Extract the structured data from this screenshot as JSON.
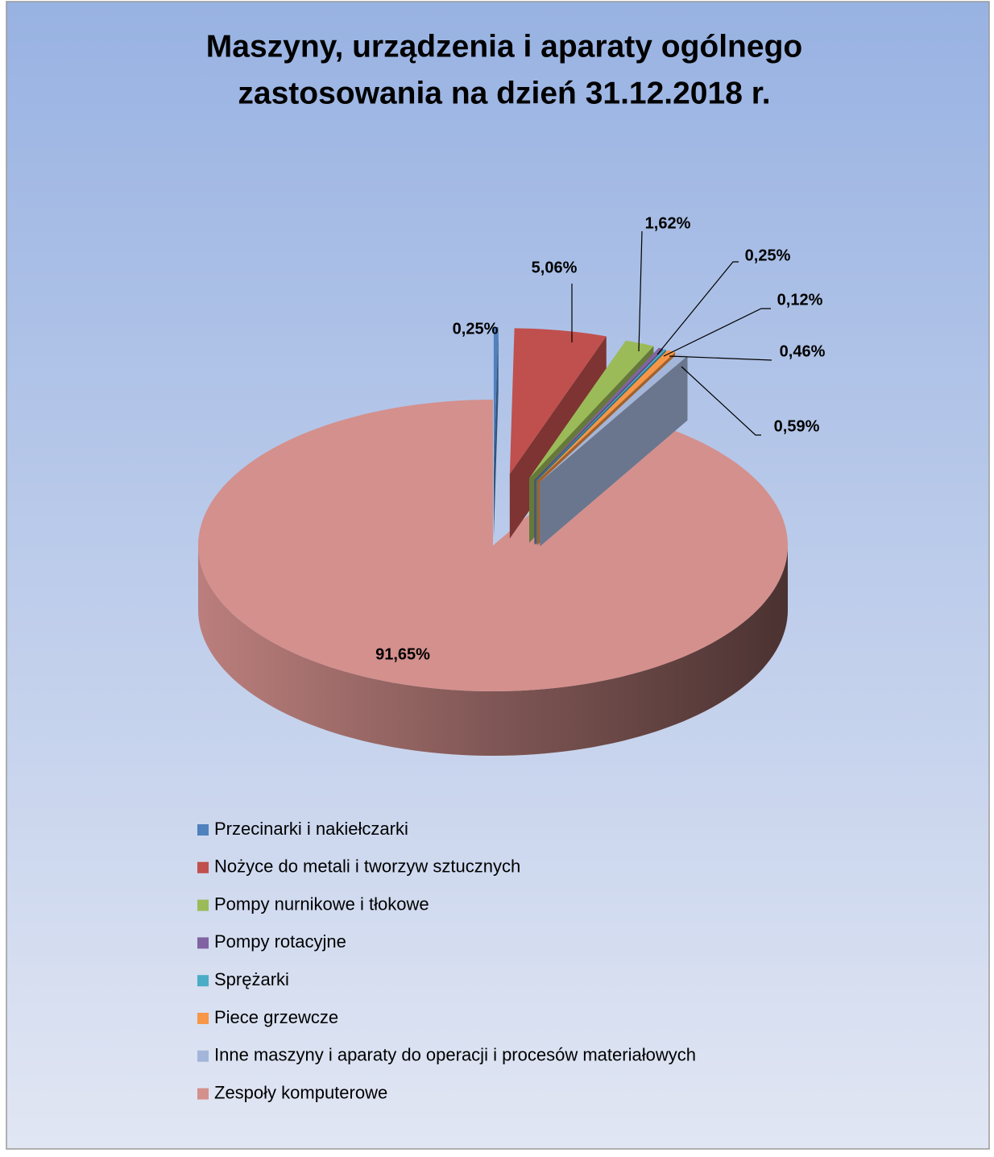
{
  "chart_data": {
    "type": "pie3d",
    "title": [
      "Maszyny, urządzenia i aparaty ogólnego",
      "zastosowania na dzień 31.12.2018 r."
    ],
    "categories": [
      "Przecinarki i nakiełczarki",
      "Nożyce do metali i tworzyw sztucznych",
      "Pompy nurnikowe i tłokowe",
      "Pompy rotacyjne",
      "Sprężarki",
      "Piece grzewcze",
      "Inne maszyny i aparaty do operacji i procesów materiałowych",
      "Zespoły komputerowe"
    ],
    "values": [
      0.25,
      5.06,
      1.62,
      0.25,
      0.12,
      0.46,
      0.59,
      91.65
    ],
    "value_labels": [
      "0,25%",
      "5,06%",
      "1,62%",
      "0,25%",
      "0,12%",
      "0,46%",
      "0,59%",
      "91,65%"
    ],
    "colors": [
      "#4f81bd",
      "#c0504d",
      "#9bbb59",
      "#8064a2",
      "#4bacc6",
      "#f79646",
      "#a3b6d9",
      "#d4908d"
    ],
    "exploded": [
      true,
      true,
      true,
      true,
      true,
      true,
      true,
      false
    ],
    "legend": "bottom"
  }
}
